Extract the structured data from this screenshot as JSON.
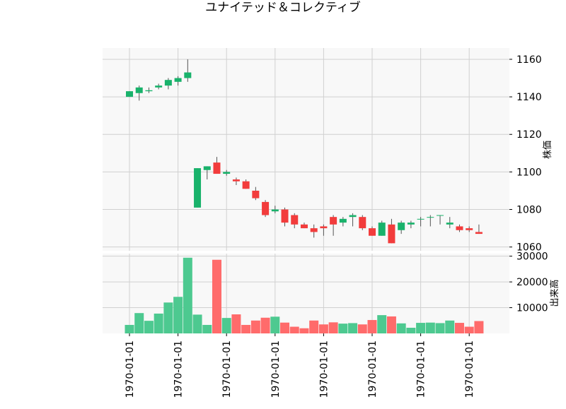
{
  "chart_data": {
    "type": "candlestick",
    "title": "ユナイテッド＆コレクティブ",
    "ylabel_price": "株価",
    "ylabel_volume": "出来高",
    "x_tick_labels": [
      "1970-01-01",
      "1970-01-01",
      "1970-01-01",
      "1970-01-01",
      "1970-01-01",
      "1970-01-01",
      "1970-01-01",
      "1970-01-01"
    ],
    "price_yticks": [
      1060,
      1080,
      1100,
      1120,
      1140,
      1160
    ],
    "price_ylim": [
      1058,
      1166
    ],
    "volume_yticks": [
      10000,
      20000,
      30000
    ],
    "volume_ylim": [
      0,
      31000
    ],
    "grid": true,
    "colors": {
      "up": "#19b26b",
      "down": "#f23c3c",
      "up_volume": "#4dc990",
      "down_volume": "#ff6b6b",
      "wick": "#555555",
      "panel_bg": "#f8f8f8",
      "grid": "#d0d0d0"
    },
    "candles": [
      {
        "o": 1140,
        "h": 1143,
        "l": 1140,
        "c": 1143,
        "v": 3300
      },
      {
        "o": 1142,
        "h": 1146,
        "l": 1138,
        "c": 1145,
        "v": 7900
      },
      {
        "o": 1143,
        "h": 1145,
        "l": 1142,
        "c": 1143.5,
        "v": 4900
      },
      {
        "o": 1145,
        "h": 1147,
        "l": 1144,
        "c": 1146,
        "v": 7700
      },
      {
        "o": 1146,
        "h": 1150,
        "l": 1144,
        "c": 1149,
        "v": 12000
      },
      {
        "o": 1148,
        "h": 1151,
        "l": 1146,
        "c": 1150,
        "v": 14200
      },
      {
        "o": 1150,
        "h": 1160,
        "l": 1148,
        "c": 1153,
        "v": 29400
      },
      {
        "o": 1081,
        "h": 1102,
        "l": 1081,
        "c": 1102,
        "v": 7300
      },
      {
        "o": 1101,
        "h": 1103,
        "l": 1096,
        "c": 1103,
        "v": 3300
      },
      {
        "o": 1105,
        "h": 1108,
        "l": 1099,
        "c": 1099,
        "v": 28600
      },
      {
        "o": 1099,
        "h": 1101,
        "l": 1098,
        "c": 1100,
        "v": 6000
      },
      {
        "o": 1096,
        "h": 1097,
        "l": 1093,
        "c": 1095,
        "v": 7400
      },
      {
        "o": 1095,
        "h": 1096,
        "l": 1091,
        "c": 1091,
        "v": 3300
      },
      {
        "o": 1090,
        "h": 1092,
        "l": 1085,
        "c": 1086,
        "v": 5000
      },
      {
        "o": 1084,
        "h": 1085,
        "l": 1076,
        "c": 1077,
        "v": 6100
      },
      {
        "o": 1079,
        "h": 1082,
        "l": 1078,
        "c": 1080,
        "v": 6500
      },
      {
        "o": 1080,
        "h": 1081,
        "l": 1071,
        "c": 1073,
        "v": 4200
      },
      {
        "o": 1077,
        "h": 1078,
        "l": 1070,
        "c": 1072,
        "v": 2600
      },
      {
        "o": 1072,
        "h": 1073,
        "l": 1070,
        "c": 1070,
        "v": 2000
      },
      {
        "o": 1070,
        "h": 1072,
        "l": 1065,
        "c": 1068,
        "v": 5000
      },
      {
        "o": 1071,
        "h": 1072,
        "l": 1066,
        "c": 1070,
        "v": 3500
      },
      {
        "o": 1076,
        "h": 1077,
        "l": 1066,
        "c": 1072,
        "v": 4300
      },
      {
        "o": 1073,
        "h": 1076,
        "l": 1071,
        "c": 1075,
        "v": 3800
      },
      {
        "o": 1076,
        "h": 1078,
        "l": 1071,
        "c": 1077,
        "v": 4000
      },
      {
        "o": 1076,
        "h": 1077,
        "l": 1069,
        "c": 1070,
        "v": 3500
      },
      {
        "o": 1070,
        "h": 1071,
        "l": 1066,
        "c": 1066,
        "v": 5200
      },
      {
        "o": 1066,
        "h": 1074,
        "l": 1066,
        "c": 1073,
        "v": 7100
      },
      {
        "o": 1072,
        "h": 1075,
        "l": 1062,
        "c": 1062,
        "v": 6600
      },
      {
        "o": 1069,
        "h": 1074,
        "l": 1067,
        "c": 1073,
        "v": 3900
      },
      {
        "o": 1072,
        "h": 1074,
        "l": 1070,
        "c": 1073,
        "v": 2200
      },
      {
        "o": 1075,
        "h": 1076,
        "l": 1071,
        "c": 1075,
        "v": 4100
      },
      {
        "o": 1076,
        "h": 1077,
        "l": 1071,
        "c": 1076,
        "v": 4200
      },
      {
        "o": 1077,
        "h": 1077,
        "l": 1072,
        "c": 1077,
        "v": 4000
      },
      {
        "o": 1072,
        "h": 1076,
        "l": 1070,
        "c": 1073,
        "v": 5000
      },
      {
        "o": 1071,
        "h": 1072,
        "l": 1068,
        "c": 1069,
        "v": 4100
      },
      {
        "o": 1070,
        "h": 1071,
        "l": 1068,
        "c": 1069,
        "v": 2600
      },
      {
        "o": 1068,
        "h": 1072,
        "l": 1067,
        "c": 1067,
        "v": 4800
      }
    ]
  }
}
